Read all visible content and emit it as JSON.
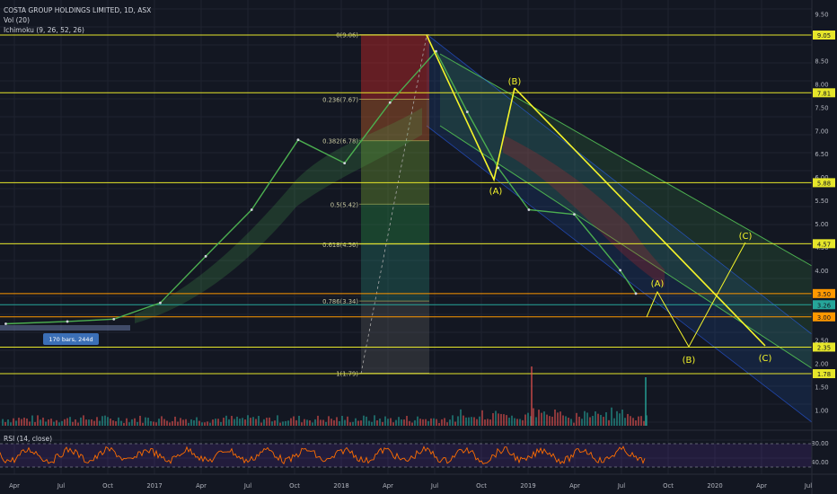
{
  "header": {
    "title": "COSTA GROUP HOLDINGS LIMITED, 1D, ASX",
    "vol_label": "Vol (20)",
    "ichimoku_label": "Ichimoku (9, 26, 52, 26)"
  },
  "rsi": {
    "label": "RSI (14, close)",
    "ticks": [
      "80.00",
      "40.00"
    ]
  },
  "colors": {
    "background": "#131722",
    "level_line": "#e6e62a",
    "orange_line": "#ff9800",
    "price_path": "#4caf50",
    "rsi_line": "#ff6d00",
    "wave": "#f5f52a"
  },
  "chart_data": {
    "type": "line",
    "y_axis_ticks": [
      "9.50",
      "8.50",
      "8.00",
      "7.50",
      "7.00",
      "6.50",
      "6.00",
      "5.50",
      "5.00",
      "4.50",
      "4.00",
      "3.50",
      "3.00",
      "2.50",
      "2.00",
      "1.50",
      "1.00"
    ],
    "x_axis_ticks": [
      "Apr",
      "Jul",
      "Oct",
      "2017",
      "Apr",
      "Jul",
      "Oct",
      "2018",
      "Apr",
      "Jul",
      "Oct",
      "2019",
      "Apr",
      "Jul",
      "Oct",
      "2020",
      "Apr",
      "Jul"
    ],
    "price_labels": [
      {
        "text": "9.05",
        "value": 9.05,
        "color": "#e6e62a"
      },
      {
        "text": "7.81",
        "value": 7.81,
        "color": "#e6e62a"
      },
      {
        "text": "5.88",
        "value": 5.88,
        "color": "#e6e62a"
      },
      {
        "text": "4.57",
        "value": 4.57,
        "color": "#e6e62a"
      },
      {
        "text": "3.50",
        "value": 3.5,
        "color": "#ff9800"
      },
      {
        "text": "3.26",
        "value": 3.26,
        "color": "#26a69a"
      },
      {
        "text": "3.00",
        "value": 3.0,
        "color": "#ff9800"
      },
      {
        "text": "2.35",
        "value": 2.35,
        "color": "#e6e62a"
      },
      {
        "text": "1.78",
        "value": 1.78,
        "color": "#e6e62a"
      }
    ],
    "fib_labels": [
      {
        "text": "0(9.06)",
        "value": 9.06
      },
      {
        "text": "0.236(7.67)",
        "value": 7.67
      },
      {
        "text": "0.382(6.78)",
        "value": 6.78
      },
      {
        "text": "0.5(5.42)",
        "value": 5.42
      },
      {
        "text": "0.618(4.56)",
        "value": 4.56
      },
      {
        "text": "0.786(3.34)",
        "value": 3.34
      },
      {
        "text": "1(1.79)",
        "value": 1.79
      }
    ],
    "wave_labels": [
      "(A)",
      "(B)",
      "(A)",
      "(B)",
      "(C)",
      "(C)"
    ],
    "bars_label": "170 bars, 244d",
    "price_series": [
      {
        "x": "2016-03",
        "y": 2.85
      },
      {
        "x": "2016-07",
        "y": 2.9
      },
      {
        "x": "2016-10",
        "y": 2.95
      },
      {
        "x": "2017-01",
        "y": 3.3
      },
      {
        "x": "2017-04",
        "y": 4.3
      },
      {
        "x": "2017-07",
        "y": 5.3
      },
      {
        "x": "2017-10",
        "y": 6.8
      },
      {
        "x": "2018-01",
        "y": 6.3
      },
      {
        "x": "2018-04",
        "y": 7.6
      },
      {
        "x": "2018-07",
        "y": 8.7
      },
      {
        "x": "2018-09",
        "y": 7.4
      },
      {
        "x": "2018-11",
        "y": 6.2
      },
      {
        "x": "2019-01",
        "y": 5.3
      },
      {
        "x": "2019-04",
        "y": 5.2
      },
      {
        "x": "2019-07",
        "y": 4.0
      },
      {
        "x": "2019-08",
        "y": 3.5
      }
    ]
  }
}
